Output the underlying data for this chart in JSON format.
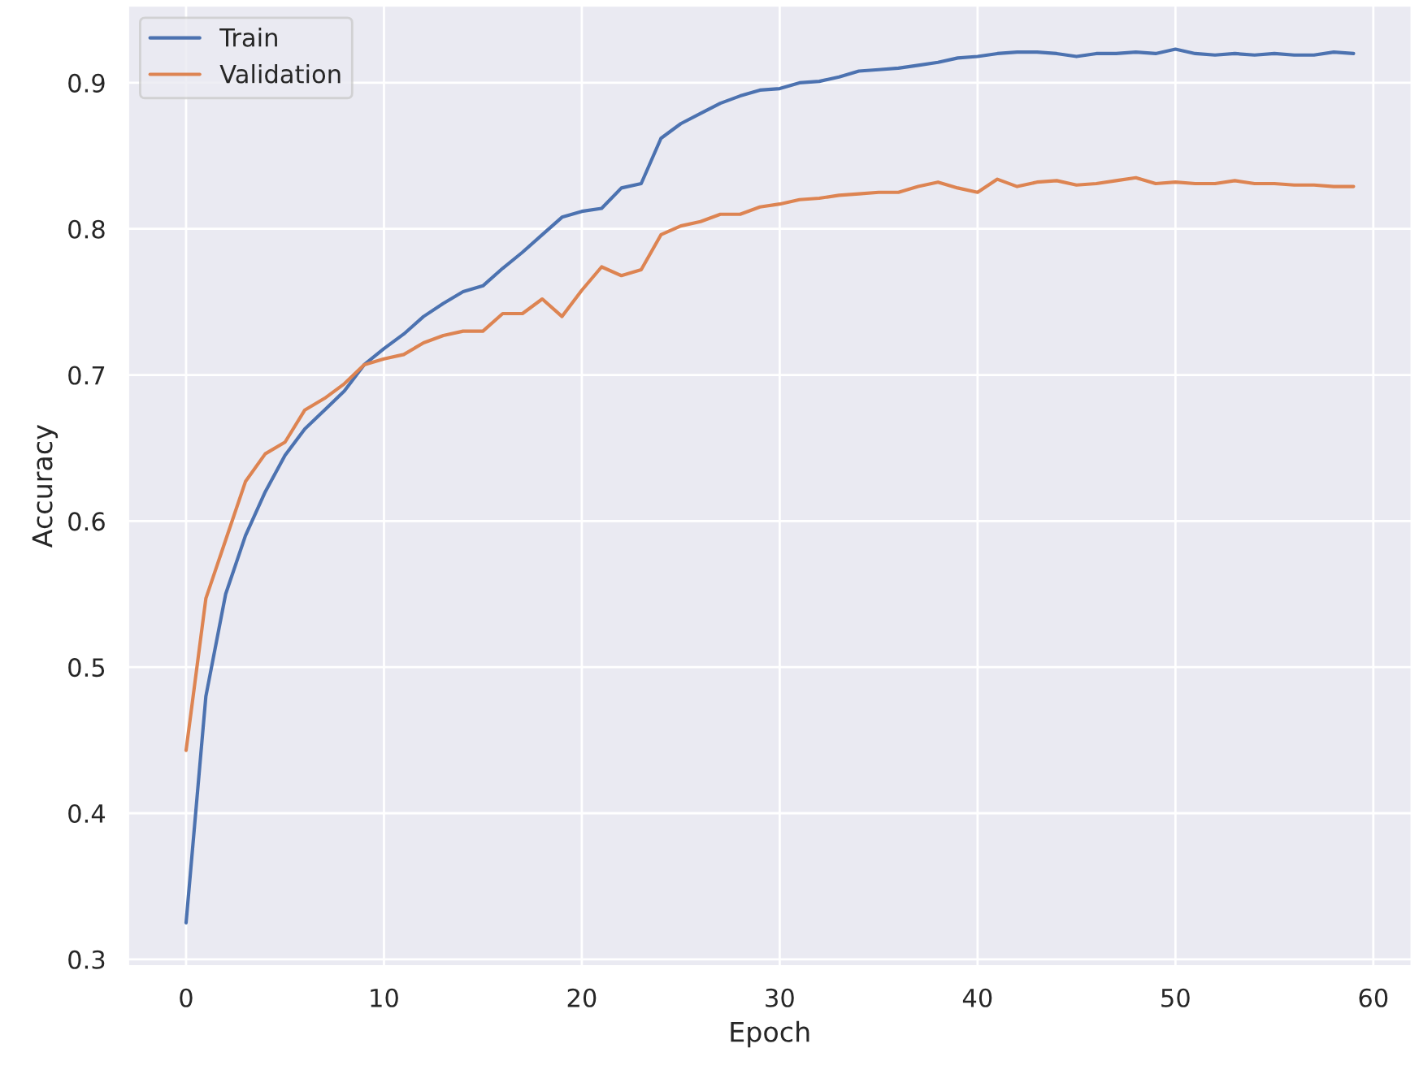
{
  "chart_data": {
    "type": "line",
    "xlabel": "Epoch",
    "ylabel": "Accuracy",
    "x": [
      0,
      1,
      2,
      3,
      4,
      5,
      6,
      7,
      8,
      9,
      10,
      11,
      12,
      13,
      14,
      15,
      16,
      17,
      18,
      19,
      20,
      21,
      22,
      23,
      24,
      25,
      26,
      27,
      28,
      29,
      30,
      31,
      32,
      33,
      34,
      35,
      36,
      37,
      38,
      39,
      40,
      41,
      42,
      43,
      44,
      45,
      46,
      47,
      48,
      49,
      50,
      51,
      52,
      53,
      54,
      55,
      56,
      57,
      58,
      59
    ],
    "series": [
      {
        "name": "Train",
        "color": "#4c72b0",
        "values": [
          0.325,
          0.48,
          0.55,
          0.59,
          0.62,
          0.645,
          0.663,
          0.676,
          0.689,
          0.707,
          0.718,
          0.728,
          0.74,
          0.749,
          0.757,
          0.761,
          0.773,
          0.784,
          0.796,
          0.808,
          0.812,
          0.814,
          0.828,
          0.831,
          0.862,
          0.872,
          0.879,
          0.886,
          0.891,
          0.895,
          0.896,
          0.9,
          0.901,
          0.904,
          0.908,
          0.909,
          0.91,
          0.912,
          0.914,
          0.917,
          0.918,
          0.92,
          0.921,
          0.921,
          0.92,
          0.918,
          0.92,
          0.92,
          0.921,
          0.92,
          0.923,
          0.92,
          0.919,
          0.92,
          0.919,
          0.92,
          0.919,
          0.919,
          0.921,
          0.92
        ]
      },
      {
        "name": "Validation",
        "color": "#dd8452",
        "values": [
          0.443,
          0.547,
          0.587,
          0.627,
          0.646,
          0.654,
          0.676,
          0.684,
          0.694,
          0.707,
          0.711,
          0.714,
          0.722,
          0.727,
          0.73,
          0.73,
          0.742,
          0.742,
          0.752,
          0.74,
          0.758,
          0.774,
          0.768,
          0.772,
          0.796,
          0.802,
          0.805,
          0.81,
          0.81,
          0.815,
          0.817,
          0.82,
          0.821,
          0.823,
          0.824,
          0.825,
          0.825,
          0.829,
          0.832,
          0.828,
          0.825,
          0.834,
          0.829,
          0.832,
          0.833,
          0.83,
          0.831,
          0.833,
          0.835,
          0.831,
          0.832,
          0.831,
          0.831,
          0.833,
          0.831,
          0.831,
          0.83,
          0.83,
          0.829,
          0.829
        ]
      }
    ],
    "xlim": [
      -2.95,
      61.95
    ],
    "ylim": [
      0.295,
      0.953
    ],
    "xticks": [
      0,
      10,
      20,
      30,
      40,
      50,
      60
    ],
    "yticks": [
      0.3,
      0.4,
      0.5,
      0.6,
      0.7,
      0.8,
      0.9
    ],
    "grid": true,
    "legend": "top left",
    "line_style": "solid"
  }
}
